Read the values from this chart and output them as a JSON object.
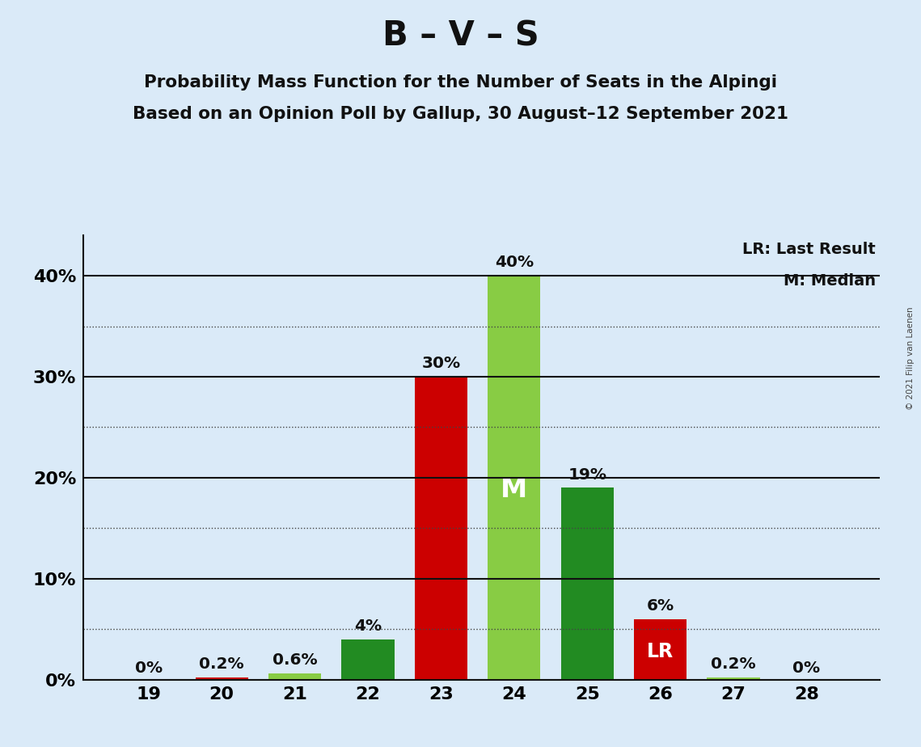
{
  "title": "B – V – S",
  "subtitle1": "Probability Mass Function for the Number of Seats in the Alpingi",
  "subtitle2": "Based on an Opinion Poll by Gallup, 30 August–12 September 2021",
  "copyright": "© 2021 Filip van Laenen",
  "legend_lr": "LR: Last Result",
  "legend_m": "M: Median",
  "seats": [
    19,
    20,
    21,
    22,
    23,
    24,
    25,
    26,
    27,
    28
  ],
  "probabilities": [
    0.0,
    0.2,
    0.6,
    4.0,
    30.0,
    40.0,
    19.0,
    6.0,
    0.2,
    0.0
  ],
  "bar_colors": [
    "#cc0000",
    "#cc0000",
    "#88cc44",
    "#228B22",
    "#cc0000",
    "#88cc44",
    "#228B22",
    "#cc0000",
    "#88cc44",
    "#88cc44"
  ],
  "bar_labels": [
    "0%",
    "0.2%",
    "0.6%",
    "4%",
    "30%",
    "40%",
    "19%",
    "6%",
    "0.2%",
    "0%"
  ],
  "median_seat": 24,
  "lr_seat": 26,
  "median_label": "M",
  "lr_label": "LR",
  "ylim_max": 44,
  "yticks": [
    0,
    10,
    20,
    30,
    40
  ],
  "dotted_gridlines": [
    5,
    15,
    25,
    35
  ],
  "ytick_labels": [
    "0%",
    "10%",
    "20%",
    "30%",
    "40%"
  ],
  "background_color": "#daeaf8",
  "bar_width": 0.72,
  "title_fontsize": 30,
  "subtitle_fontsize": 15.5,
  "tick_fontsize": 16,
  "label_fontsize": 14.5
}
